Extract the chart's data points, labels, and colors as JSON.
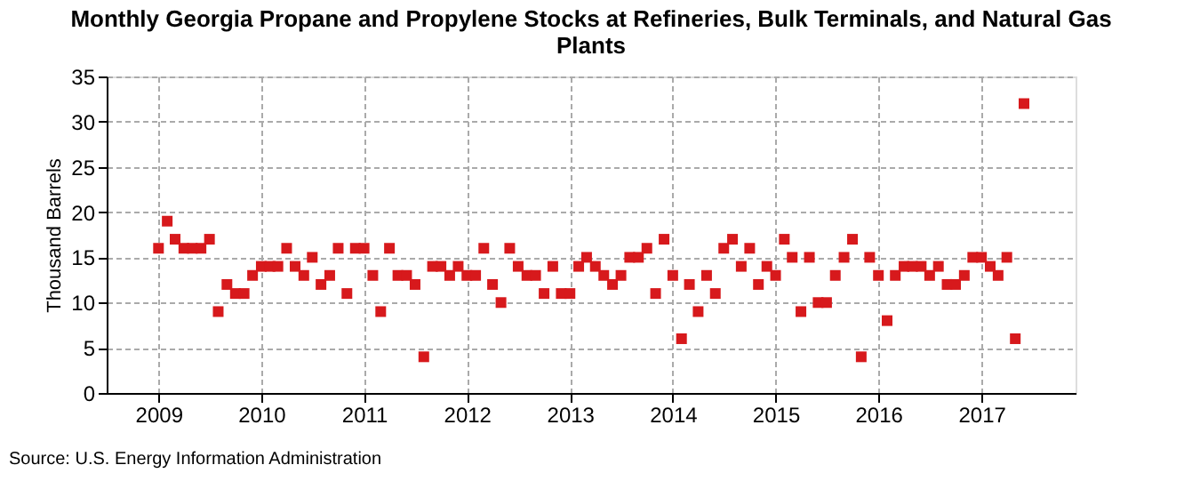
{
  "chart_data": {
    "type": "scatter",
    "title": "Monthly Georgia Propane and Propylene Stocks at Refineries, Bulk Terminals, and Natural Gas Plants",
    "ylabel": "Thousand Barrels",
    "annotations": [
      "Source: U.S. Energy Information Administration"
    ],
    "x": [
      "2009-01",
      "2009-02",
      "2009-03",
      "2009-04",
      "2009-05",
      "2009-06",
      "2009-07",
      "2009-08",
      "2009-09",
      "2009-10",
      "2009-11",
      "2009-12",
      "2010-01",
      "2010-02",
      "2010-03",
      "2010-04",
      "2010-05",
      "2010-06",
      "2010-07",
      "2010-08",
      "2010-09",
      "2010-10",
      "2010-11",
      "2010-12",
      "2011-01",
      "2011-02",
      "2011-03",
      "2011-04",
      "2011-05",
      "2011-06",
      "2011-07",
      "2011-08",
      "2011-09",
      "2011-10",
      "2011-11",
      "2011-12",
      "2012-01",
      "2012-02",
      "2012-03",
      "2012-04",
      "2012-05",
      "2012-06",
      "2012-07",
      "2012-08",
      "2012-09",
      "2012-10",
      "2012-11",
      "2012-12",
      "2013-01",
      "2013-02",
      "2013-03",
      "2013-04",
      "2013-05",
      "2013-06",
      "2013-07",
      "2013-08",
      "2013-09",
      "2013-10",
      "2013-11",
      "2013-12",
      "2014-01",
      "2014-02",
      "2014-03",
      "2014-04",
      "2014-05",
      "2014-06",
      "2014-07",
      "2014-08",
      "2014-09",
      "2014-10",
      "2014-11",
      "2014-12",
      "2015-01",
      "2015-02",
      "2015-03",
      "2015-04",
      "2015-05",
      "2015-06",
      "2015-07",
      "2015-08",
      "2015-09",
      "2015-10",
      "2015-11",
      "2015-12",
      "2016-01",
      "2016-02",
      "2016-03",
      "2016-04",
      "2016-05",
      "2016-06",
      "2016-07",
      "2016-08",
      "2016-09",
      "2016-10",
      "2016-11",
      "2016-12",
      "2017-01",
      "2017-02",
      "2017-03",
      "2017-04",
      "2017-05",
      "2017-06"
    ],
    "series": [
      {
        "color": "#d7191c",
        "values": [
          16,
          19,
          17,
          16,
          16,
          16,
          17,
          9,
          12,
          11,
          11,
          13,
          14,
          14,
          14,
          16,
          14,
          13,
          15,
          12,
          13,
          16,
          11,
          16,
          16,
          13,
          9,
          16,
          13,
          13,
          12,
          4,
          14,
          14,
          13,
          14,
          13,
          13,
          16,
          12,
          10,
          16,
          14,
          13,
          13,
          11,
          14,
          11,
          11,
          14,
          15,
          14,
          13,
          12,
          13,
          15,
          15,
          16,
          11,
          17,
          13,
          6,
          12,
          9,
          13,
          11,
          16,
          17,
          14,
          16,
          12,
          14,
          13,
          17,
          15,
          9,
          15,
          10,
          10,
          13,
          15,
          17,
          4,
          15,
          13,
          8,
          13,
          14,
          14,
          14,
          13,
          14,
          12,
          12,
          13,
          15,
          15,
          14,
          13,
          15,
          6,
          32
        ]
      }
    ],
    "xlim": [
      "2008-07",
      "2017-12"
    ],
    "xticks": [
      "2009",
      "2010",
      "2011",
      "2012",
      "2013",
      "2014",
      "2015",
      "2016",
      "2017"
    ],
    "ylim": [
      0,
      35
    ],
    "yticks": [
      0,
      5,
      10,
      15,
      20,
      25,
      30,
      35
    ],
    "grid": true,
    "marker": "square"
  }
}
